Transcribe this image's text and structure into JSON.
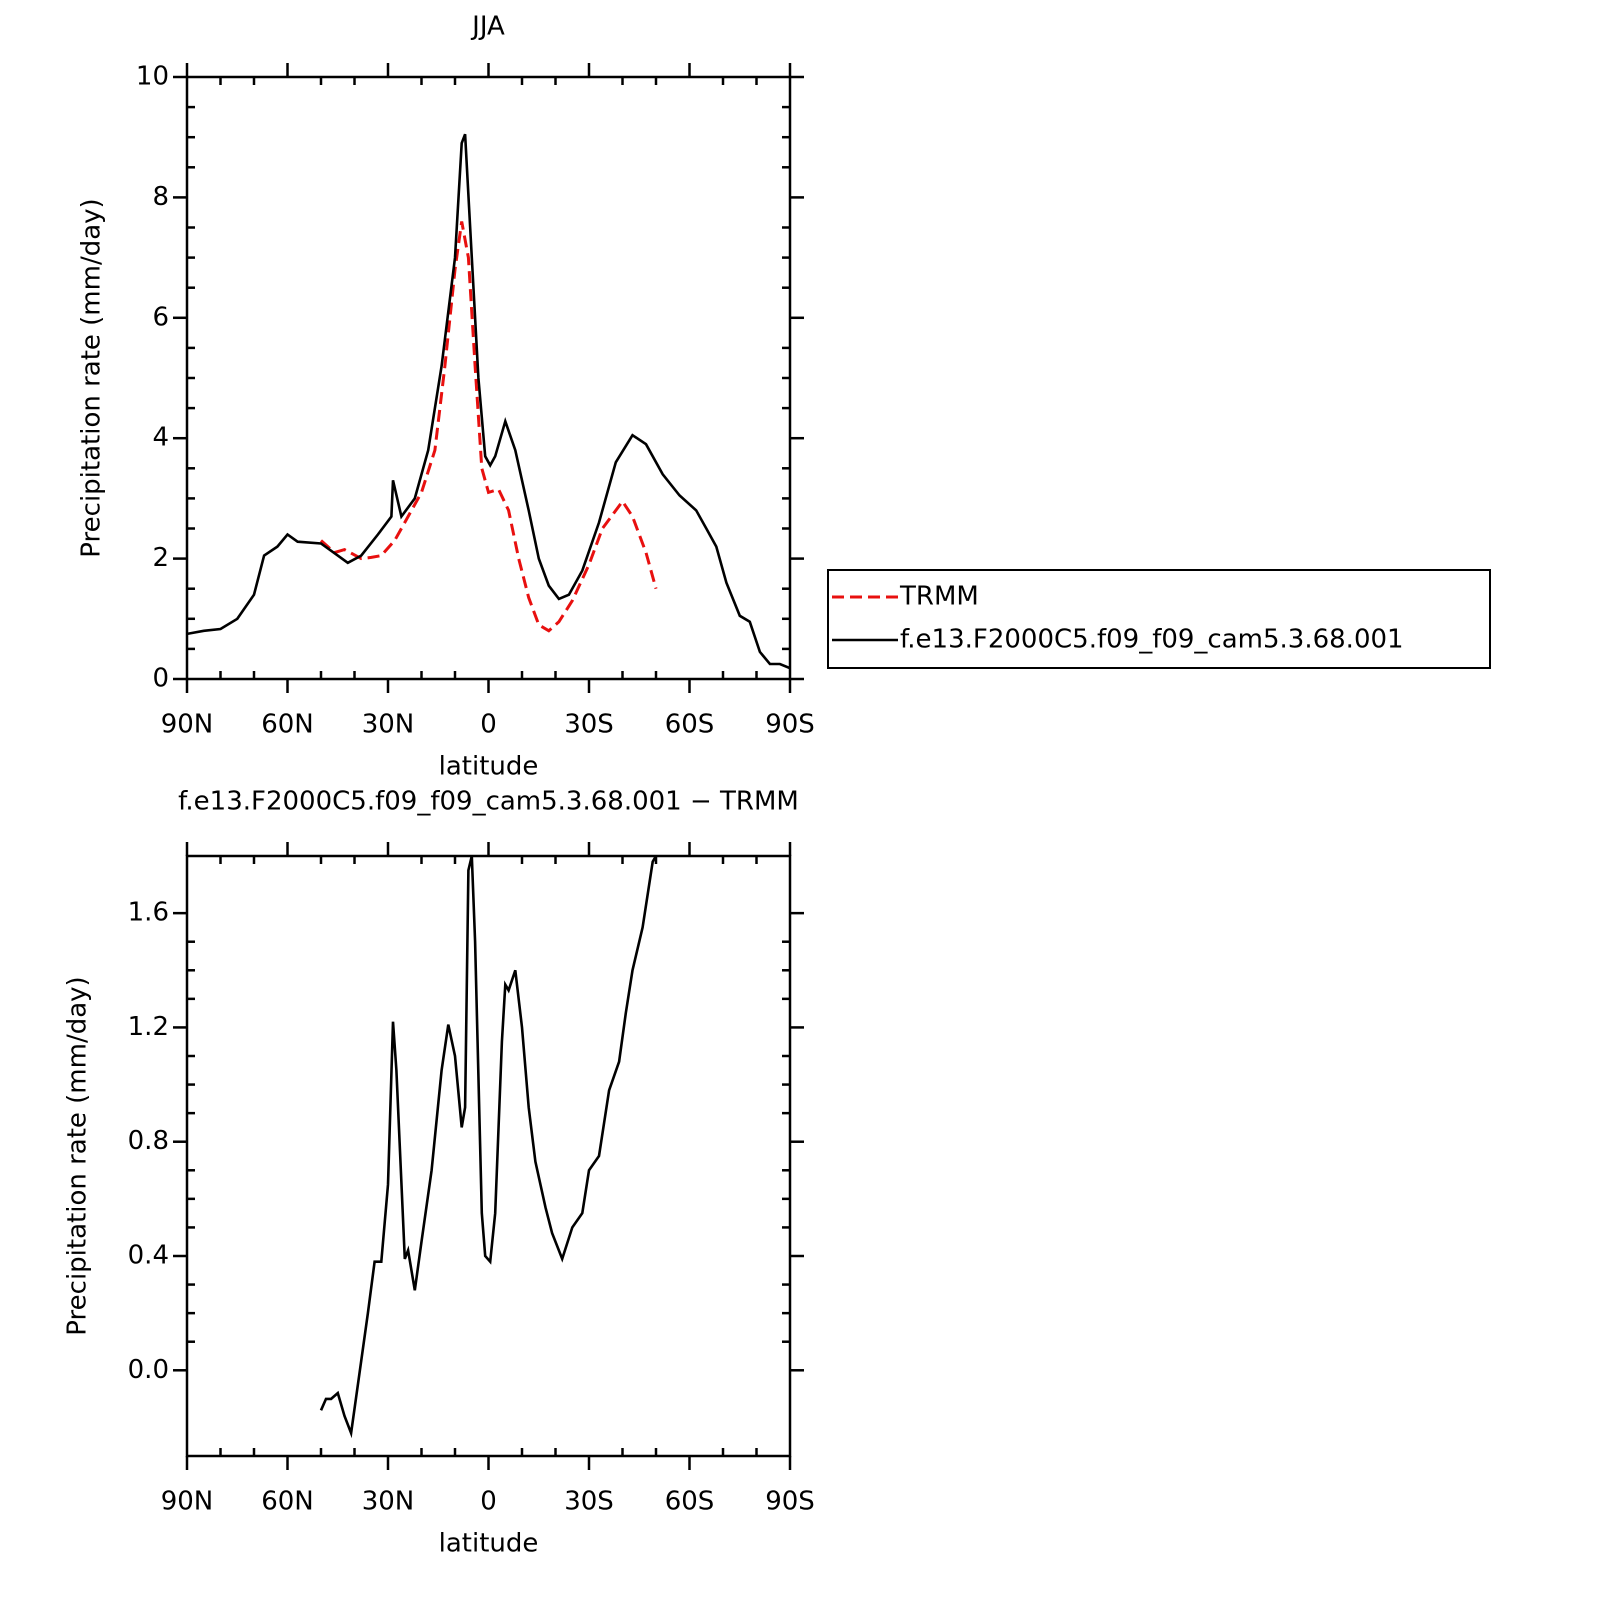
{
  "chart_data": [
    {
      "type": "line",
      "title": "JJA",
      "xlabel": "latitude",
      "ylabel": "Precipitation rate (mm/day)",
      "xlim": [
        90,
        -90
      ],
      "xticks": [
        {
          "value": 90,
          "label": "90N"
        },
        {
          "value": 60,
          "label": "60N"
        },
        {
          "value": 30,
          "label": "30N"
        },
        0,
        {
          "value": -30,
          "label": "30S"
        },
        {
          "value": -60,
          "label": "60S"
        },
        {
          "value": -90,
          "label": "90S"
        }
      ],
      "ylim": [
        0,
        10
      ],
      "yticks": [
        0,
        2,
        4,
        6,
        8,
        10
      ],
      "legend": "right",
      "series": [
        {
          "name": "TRMM",
          "color": "#e8100f",
          "dashed": true,
          "x": [
            50,
            46,
            43,
            38,
            35,
            32,
            28,
            24,
            20,
            16,
            13,
            10,
            8,
            6,
            4,
            2,
            0,
            -3,
            -6,
            -9,
            -12,
            -15,
            -18,
            -21,
            -25,
            -30,
            -34,
            -40,
            -43,
            -47,
            -50
          ],
          "values": [
            2.3,
            2.1,
            2.15,
            2.0,
            2.02,
            2.05,
            2.3,
            2.7,
            3.1,
            3.8,
            5.2,
            6.8,
            7.6,
            7.0,
            5.2,
            3.5,
            3.1,
            3.15,
            2.8,
            2.0,
            1.35,
            0.9,
            0.8,
            0.95,
            1.3,
            1.9,
            2.5,
            2.95,
            2.7,
            2.1,
            1.5
          ]
        },
        {
          "name": "f.e13.F2000C5.f09_f09_cam5.3.68.001",
          "color": "#000000",
          "dashed": false,
          "x": [
            90,
            85,
            80,
            75,
            70,
            67,
            63,
            60,
            57,
            50,
            45,
            42,
            38,
            33,
            29,
            28.5,
            26,
            22,
            18,
            14,
            10,
            8,
            7,
            5,
            3,
            1,
            -0.5,
            -2,
            -5,
            -8,
            -12,
            -15,
            -18,
            -21,
            -24,
            -28,
            -33,
            -38,
            -43,
            -47,
            -52,
            -57,
            -62,
            -65,
            -68,
            -71,
            -75,
            -78,
            -81,
            -84,
            -87,
            -90
          ],
          "values": [
            0.75,
            0.8,
            0.83,
            1.0,
            1.4,
            2.05,
            2.2,
            2.4,
            2.28,
            2.25,
            2.05,
            1.93,
            2.05,
            2.4,
            2.7,
            3.3,
            2.7,
            3.0,
            3.8,
            5.2,
            7.0,
            8.9,
            9.05,
            7.0,
            5.0,
            3.7,
            3.55,
            3.7,
            4.28,
            3.8,
            2.8,
            2.0,
            1.55,
            1.33,
            1.4,
            1.8,
            2.6,
            3.6,
            4.05,
            3.9,
            3.4,
            3.05,
            2.8,
            2.5,
            2.2,
            1.6,
            1.05,
            0.95,
            0.45,
            0.25,
            0.25,
            0.18
          ]
        }
      ]
    },
    {
      "type": "line",
      "title": "f.e13.F2000C5.f09_f09_cam5.3.68.001 − TRMM",
      "xlabel": "latitude",
      "ylabel": "Precipitation rate (mm/day)",
      "xlim": [
        90,
        -90
      ],
      "xticks": [
        {
          "value": 90,
          "label": "90N"
        },
        {
          "value": 60,
          "label": "60N"
        },
        {
          "value": 30,
          "label": "30N"
        },
        0,
        {
          "value": -30,
          "label": "30S"
        },
        {
          "value": -60,
          "label": "60S"
        },
        {
          "value": -90,
          "label": "90S"
        }
      ],
      "ylim": [
        -0.3,
        1.8
      ],
      "yticks": [
        {
          "value": 0,
          "label": "0.0"
        },
        0.4,
        0.8,
        1.2,
        1.6
      ],
      "series": [
        {
          "color": "#000000",
          "dashed": false,
          "x": [
            50,
            48.5,
            47,
            45,
            43,
            41,
            39,
            36,
            34,
            32,
            30,
            28.5,
            27.5,
            25,
            24,
            22,
            20,
            17,
            14,
            12,
            10,
            8,
            7,
            6,
            5,
            4,
            2,
            1,
            -0.5,
            -2,
            -4,
            -5,
            -6,
            -8,
            -10,
            -12,
            -14,
            -17,
            -19,
            -22,
            -25,
            -28,
            -30,
            -33,
            -36,
            -39,
            -41,
            -43,
            -46,
            -49,
            -50
          ],
          "values": [
            -0.14,
            -0.1,
            -0.1,
            -0.08,
            -0.16,
            -0.22,
            -0.05,
            0.2,
            0.38,
            0.38,
            0.65,
            1.22,
            1.05,
            0.39,
            0.42,
            0.28,
            0.45,
            0.7,
            1.05,
            1.21,
            1.1,
            0.85,
            0.92,
            1.75,
            1.8,
            1.5,
            0.55,
            0.4,
            0.38,
            0.55,
            1.15,
            1.35,
            1.33,
            1.4,
            1.2,
            0.92,
            0.73,
            0.57,
            0.48,
            0.39,
            0.5,
            0.55,
            0.7,
            0.75,
            0.98,
            1.08,
            1.25,
            1.4,
            1.55,
            1.78,
            1.8
          ]
        }
      ]
    }
  ]
}
